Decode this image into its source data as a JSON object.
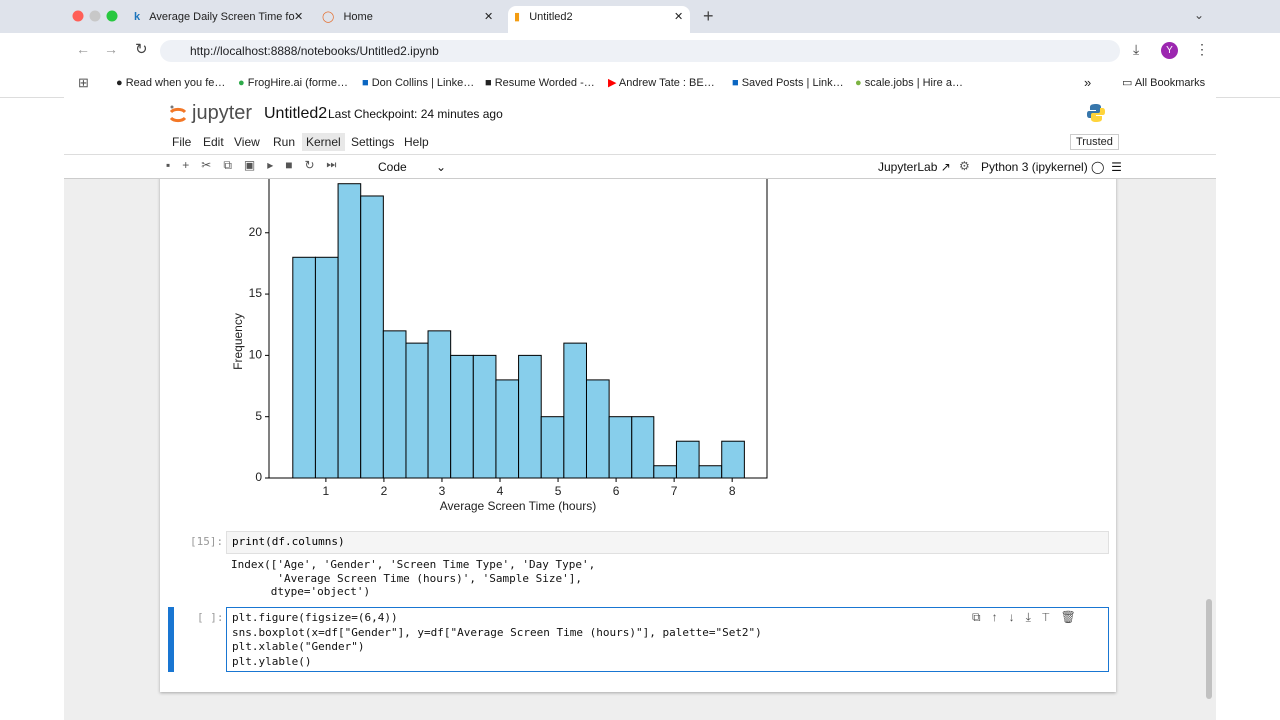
{
  "browser": {
    "tabs": [
      "Average Daily Screen Time fo",
      "Home",
      "Untitled2"
    ],
    "url": "http://localhost:8888/notebooks/Untitled2.ipynb",
    "profile": "Y",
    "bookmarks": [
      "Read when you fe…",
      "FrogHire.ai (forme…",
      "Don Collins | Linke…",
      "Resume Worded -…",
      "Andrew Tate : BE…",
      "Saved Posts | Link…",
      "scale.jobs | Hire a…"
    ],
    "all_bookmarks": "All Bookmarks"
  },
  "jupyter": {
    "logo": "jupyter",
    "notebook_name": "Untitled2",
    "checkpoint": "Last Checkpoint: 24 minutes ago",
    "menu": [
      "File",
      "Edit",
      "View",
      "Run",
      "Kernel",
      "Settings",
      "Help"
    ],
    "trusted": "Trusted",
    "cell_type": "Code",
    "jupyterlab": "JupyterLab",
    "kernel": "Python 3 (ipykernel)"
  },
  "chart_data": {
    "type": "histogram",
    "xlabel": "Average Screen Time (hours)",
    "ylabel": "Frequency",
    "bins": [
      0.43,
      0.82,
      1.21,
      1.6,
      1.99,
      2.38,
      2.76,
      3.15,
      3.54,
      3.93,
      4.32,
      4.71,
      5.1,
      5.49,
      5.88,
      6.27,
      6.65,
      7.04,
      7.43,
      7.82,
      8.21
    ],
    "values": [
      18,
      18,
      24,
      23,
      12,
      11,
      12,
      10,
      10,
      8,
      10,
      5,
      11,
      8,
      5,
      5,
      1,
      3,
      1,
      3
    ],
    "color": "#87ceeb",
    "edgecolor": "#000000",
    "xlim": [
      0.02,
      8.6
    ],
    "ylim": [
      0,
      25.2
    ],
    "xticks": [
      1,
      2,
      3,
      4,
      5,
      6,
      7,
      8
    ],
    "yticks": [
      0,
      5,
      10,
      15,
      20
    ]
  },
  "cells": [
    {
      "prompt": "[15]:",
      "code": [
        "print(df.columns)"
      ],
      "output": [
        "Index(['Age', 'Gender', 'Screen Time Type', 'Day Type',",
        "       'Average Screen Time (hours)', 'Sample Size'],",
        "      dtype='object')"
      ]
    },
    {
      "prompt": "[ ]:",
      "code": [
        "plt.figure(figsize=(6,4))",
        "sns.boxplot(x=df[\"Gender\"], y=df[\"Average Screen Time (hours)\"], palette=\"Set2\")",
        "plt.xlable(\"Gender\")",
        "plt.ylable()"
      ]
    }
  ]
}
